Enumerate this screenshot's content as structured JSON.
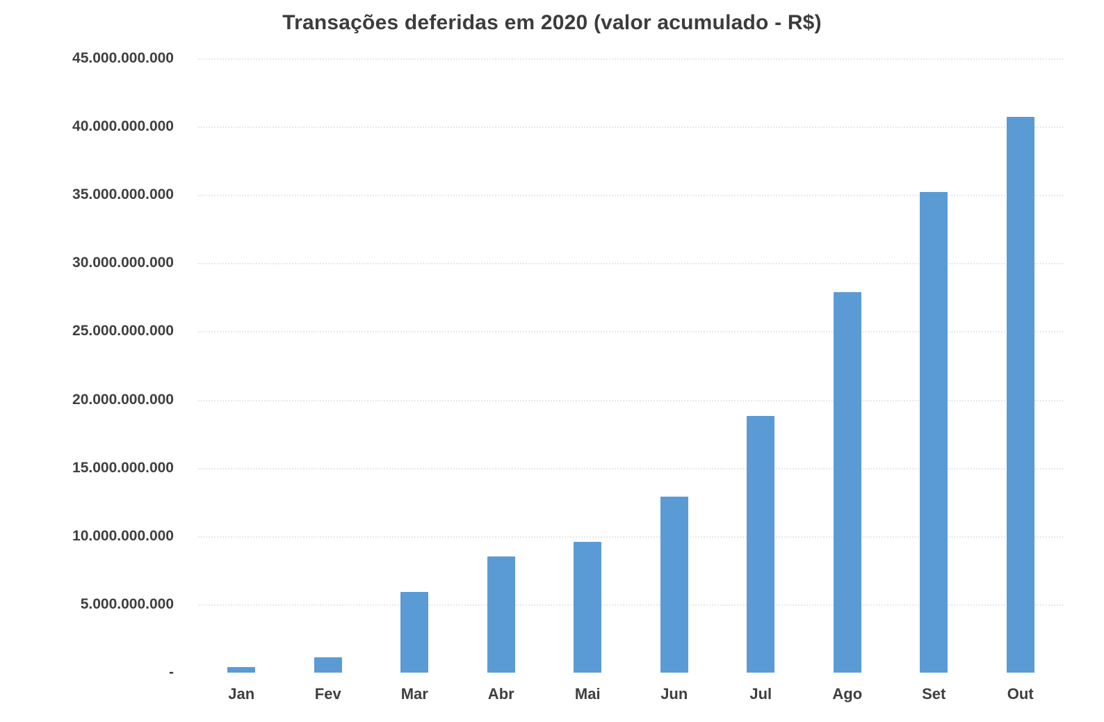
{
  "chart_data": {
    "type": "bar",
    "title": "Transações deferidas em 2020 (valor acumulado - R$)",
    "xlabel": "",
    "ylabel": "",
    "categories": [
      "Jan",
      "Fev",
      "Mar",
      "Abr",
      "Mai",
      "Jun",
      "Jul",
      "Ago",
      "Set",
      "Out"
    ],
    "values": [
      400000000,
      1100000000,
      5900000000,
      8500000000,
      9600000000,
      12900000000,
      18800000000,
      27900000000,
      35200000000,
      40700000000
    ],
    "ylim": [
      0,
      45000000000
    ],
    "grid": "horizontal-dotted",
    "legend": "none",
    "yticks": [
      {
        "value": 0,
        "label": "-"
      },
      {
        "value": 5000000000,
        "label": "5.000.000.000"
      },
      {
        "value": 10000000000,
        "label": "10.000.000.000"
      },
      {
        "value": 15000000000,
        "label": "15.000.000.000"
      },
      {
        "value": 20000000000,
        "label": "20.000.000.000"
      },
      {
        "value": 25000000000,
        "label": "25.000.000.000"
      },
      {
        "value": 30000000000,
        "label": "30.000.000.000"
      },
      {
        "value": 35000000000,
        "label": "35.000.000.000"
      },
      {
        "value": 40000000000,
        "label": "40.000.000.000"
      },
      {
        "value": 45000000000,
        "label": "45.000.000.000"
      }
    ],
    "colors": {
      "bar": "#5b9bd5",
      "title_text": "#3c3c3c",
      "tick_text": "#3f3f3f",
      "gridline": "#e7e7e7",
      "background": "#ffffff"
    }
  }
}
